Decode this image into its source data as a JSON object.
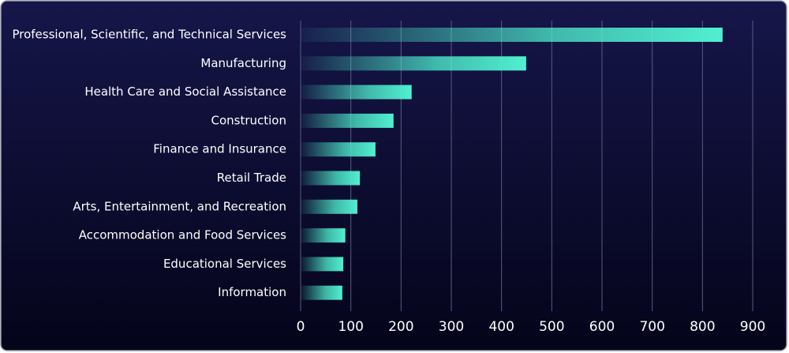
{
  "chart_data": {
    "type": "bar",
    "orientation": "horizontal",
    "categories": [
      "Professional, Scientific, and Technical Services",
      "Manufacturing",
      "Health Care and Social Assistance",
      "Construction",
      "Finance and Insurance",
      "Retail Trade",
      "Arts, Entertainment, and Recreation",
      "Accommodation and Food Services",
      "Educational Services",
      "Information"
    ],
    "values": [
      840,
      449,
      221,
      185,
      149,
      118,
      113,
      89,
      85,
      83
    ],
    "color": "#50f0d0",
    "xlim": [
      0,
      900
    ],
    "xticks": [
      0,
      100,
      200,
      300,
      400,
      500,
      600,
      700,
      800,
      900
    ],
    "grid": true
  }
}
